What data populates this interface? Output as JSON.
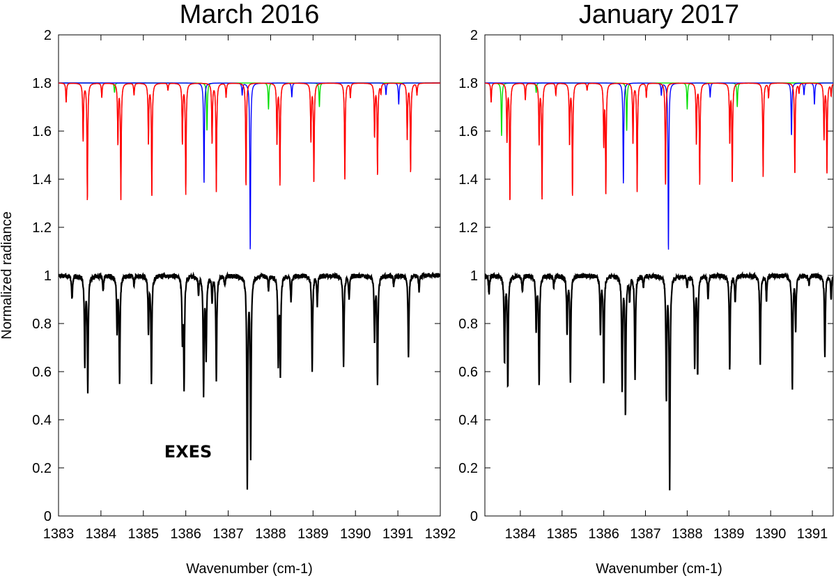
{
  "chart_data": [
    {
      "type": "line",
      "title": "March 2016",
      "xlabel": "Wavenumber (cm-1)",
      "ylabel": "Normalized radiance",
      "xlim": [
        1383,
        1392
      ],
      "ylim": [
        0,
        2
      ],
      "xticks": [
        "1383",
        "1384",
        "1385",
        "1386",
        "1387",
        "1388",
        "1389",
        "1390",
        "1391",
        "1392"
      ],
      "yticks": [
        "0",
        "0.2",
        "0.4",
        "0.6",
        "0.8",
        "1",
        "1.2",
        "1.4",
        "1.6",
        "1.8",
        "2"
      ],
      "annotations": [
        "EXES"
      ],
      "observed": {
        "color": "#000000",
        "baseline": 1.0,
        "lines": [
          [
            1383.32,
            0.9
          ],
          [
            1383.62,
            0.63
          ],
          [
            1383.69,
            0.53
          ],
          [
            1384.05,
            0.93
          ],
          [
            1384.38,
            0.77
          ],
          [
            1384.44,
            0.55
          ],
          [
            1384.78,
            0.96
          ],
          [
            1385.12,
            0.77
          ],
          [
            1385.19,
            0.56
          ],
          [
            1385.92,
            0.75
          ],
          [
            1385.96,
            0.55
          ],
          [
            1386.3,
            0.93
          ],
          [
            1386.42,
            0.52
          ],
          [
            1386.48,
            0.66
          ],
          [
            1386.62,
            0.9
          ],
          [
            1386.72,
            0.57
          ],
          [
            1386.92,
            0.96
          ],
          [
            1387.45,
            0.13
          ],
          [
            1387.53,
            0.25
          ],
          [
            1387.95,
            0.94
          ],
          [
            1388.18,
            0.64
          ],
          [
            1388.23,
            0.6
          ],
          [
            1388.48,
            0.89
          ],
          [
            1388.98,
            0.61
          ],
          [
            1389.1,
            0.88
          ],
          [
            1389.72,
            0.62
          ],
          [
            1389.85,
            0.9
          ],
          [
            1390.45,
            0.74
          ],
          [
            1390.52,
            0.55
          ],
          [
            1390.9,
            0.96
          ],
          [
            1391.25,
            0.66
          ],
          [
            1391.5,
            0.94
          ]
        ]
      },
      "model": {
        "baseline": 1.8,
        "colors": {
          "red": "#ff0000",
          "green": "#00dd00",
          "blue": "#0000ff"
        },
        "lines": [
          [
            1383.18,
            1.72,
            "red"
          ],
          [
            1383.58,
            1.56,
            "red"
          ],
          [
            1383.68,
            1.31,
            "red"
          ],
          [
            1384.02,
            1.74,
            "red"
          ],
          [
            1384.32,
            1.76,
            "green"
          ],
          [
            1384.4,
            1.55,
            "red"
          ],
          [
            1384.47,
            1.32,
            "red"
          ],
          [
            1384.78,
            1.75,
            "red"
          ],
          [
            1385.12,
            1.55,
            "red"
          ],
          [
            1385.2,
            1.33,
            "red"
          ],
          [
            1385.58,
            1.77,
            "red"
          ],
          [
            1385.92,
            1.55,
            "red"
          ],
          [
            1386.0,
            1.34,
            "red"
          ],
          [
            1386.43,
            1.38,
            "blue"
          ],
          [
            1386.5,
            1.6,
            "green"
          ],
          [
            1386.62,
            1.55,
            "red"
          ],
          [
            1386.72,
            1.35,
            "red"
          ],
          [
            1386.95,
            1.74,
            "red"
          ],
          [
            1387.33,
            1.75,
            "blue"
          ],
          [
            1387.42,
            1.37,
            "red"
          ],
          [
            1387.52,
            1.1,
            "blue"
          ],
          [
            1387.95,
            1.69,
            "green"
          ],
          [
            1388.15,
            1.55,
            "red"
          ],
          [
            1388.22,
            1.38,
            "red"
          ],
          [
            1388.5,
            1.74,
            "blue"
          ],
          [
            1388.95,
            1.56,
            "red"
          ],
          [
            1389.02,
            1.39,
            "red"
          ],
          [
            1389.15,
            1.7,
            "green"
          ],
          [
            1389.75,
            1.4,
            "red"
          ],
          [
            1389.88,
            1.74,
            "red"
          ],
          [
            1390.45,
            1.58,
            "red"
          ],
          [
            1390.52,
            1.42,
            "red"
          ],
          [
            1390.6,
            1.76,
            "red"
          ],
          [
            1390.72,
            1.75,
            "blue"
          ],
          [
            1391.02,
            1.71,
            "blue"
          ],
          [
            1391.22,
            1.57,
            "red"
          ],
          [
            1391.3,
            1.43,
            "red"
          ],
          [
            1391.45,
            1.75,
            "red"
          ]
        ]
      }
    },
    {
      "type": "line",
      "title": "January 2017",
      "xlabel": "Wavenumber (cm-1)",
      "ylabel": "",
      "xlim": [
        1383.15,
        1391.5
      ],
      "ylim": [
        0,
        2
      ],
      "xticks": [
        "1384",
        "1385",
        "1386",
        "1387",
        "1388",
        "1389",
        "1390",
        "1391"
      ],
      "yticks": [
        "0",
        "0.2",
        "0.4",
        "0.6",
        "0.8",
        "1",
        "1.2",
        "1.4",
        "1.6",
        "1.8",
        "2"
      ],
      "observed": {
        "color": "#000000",
        "baseline": 1.0,
        "lines": [
          [
            1383.25,
            0.92
          ],
          [
            1383.62,
            0.64
          ],
          [
            1383.7,
            0.54
          ],
          [
            1384.05,
            0.93
          ],
          [
            1384.38,
            0.77
          ],
          [
            1384.45,
            0.54
          ],
          [
            1384.8,
            0.95
          ],
          [
            1385.12,
            0.77
          ],
          [
            1385.2,
            0.56
          ],
          [
            1385.92,
            0.76
          ],
          [
            1386.0,
            0.56
          ],
          [
            1386.44,
            0.53
          ],
          [
            1386.52,
            0.43
          ],
          [
            1386.62,
            0.9
          ],
          [
            1386.75,
            0.57
          ],
          [
            1386.95,
            0.95
          ],
          [
            1387.5,
            0.49
          ],
          [
            1387.58,
            0.13
          ],
          [
            1388.0,
            0.95
          ],
          [
            1388.18,
            0.63
          ],
          [
            1388.25,
            0.59
          ],
          [
            1388.5,
            0.9
          ],
          [
            1389.02,
            0.61
          ],
          [
            1389.15,
            0.89
          ],
          [
            1389.75,
            0.63
          ],
          [
            1389.9,
            0.9
          ],
          [
            1390.52,
            0.53
          ],
          [
            1390.6,
            0.78
          ],
          [
            1390.92,
            0.96
          ],
          [
            1391.3,
            0.66
          ],
          [
            1391.45,
            0.9
          ]
        ]
      },
      "model": {
        "baseline": 1.8,
        "colors": {
          "red": "#ff0000",
          "green": "#00dd00",
          "blue": "#0000ff"
        },
        "lines": [
          [
            1383.3,
            1.72,
            "red"
          ],
          [
            1383.55,
            1.58,
            "green"
          ],
          [
            1383.68,
            1.56,
            "red"
          ],
          [
            1383.75,
            1.31,
            "red"
          ],
          [
            1384.12,
            1.73,
            "red"
          ],
          [
            1384.38,
            1.76,
            "green"
          ],
          [
            1384.45,
            1.55,
            "red"
          ],
          [
            1384.52,
            1.32,
            "red"
          ],
          [
            1384.85,
            1.75,
            "red"
          ],
          [
            1385.18,
            1.55,
            "red"
          ],
          [
            1385.25,
            1.33,
            "red"
          ],
          [
            1385.6,
            1.77,
            "red"
          ],
          [
            1386.0,
            1.55,
            "red"
          ],
          [
            1386.05,
            1.34,
            "red"
          ],
          [
            1386.47,
            1.38,
            "blue"
          ],
          [
            1386.55,
            1.6,
            "green"
          ],
          [
            1386.7,
            1.55,
            "red"
          ],
          [
            1386.8,
            1.35,
            "red"
          ],
          [
            1387.02,
            1.74,
            "red"
          ],
          [
            1387.38,
            1.75,
            "blue"
          ],
          [
            1387.48,
            1.37,
            "red"
          ],
          [
            1387.55,
            1.1,
            "blue"
          ],
          [
            1388.0,
            1.69,
            "green"
          ],
          [
            1388.22,
            1.55,
            "red"
          ],
          [
            1388.3,
            1.38,
            "red"
          ],
          [
            1388.55,
            1.74,
            "blue"
          ],
          [
            1389.02,
            1.56,
            "red"
          ],
          [
            1389.08,
            1.39,
            "red"
          ],
          [
            1389.2,
            1.7,
            "green"
          ],
          [
            1389.82,
            1.41,
            "red"
          ],
          [
            1389.95,
            1.74,
            "red"
          ],
          [
            1390.5,
            1.58,
            "blue"
          ],
          [
            1390.58,
            1.42,
            "red"
          ],
          [
            1390.68,
            1.76,
            "red"
          ],
          [
            1390.8,
            1.75,
            "blue"
          ],
          [
            1391.05,
            1.71,
            "blue"
          ],
          [
            1391.28,
            1.57,
            "red"
          ],
          [
            1391.35,
            1.43,
            "red"
          ],
          [
            1391.45,
            1.75,
            "red"
          ]
        ]
      }
    }
  ]
}
